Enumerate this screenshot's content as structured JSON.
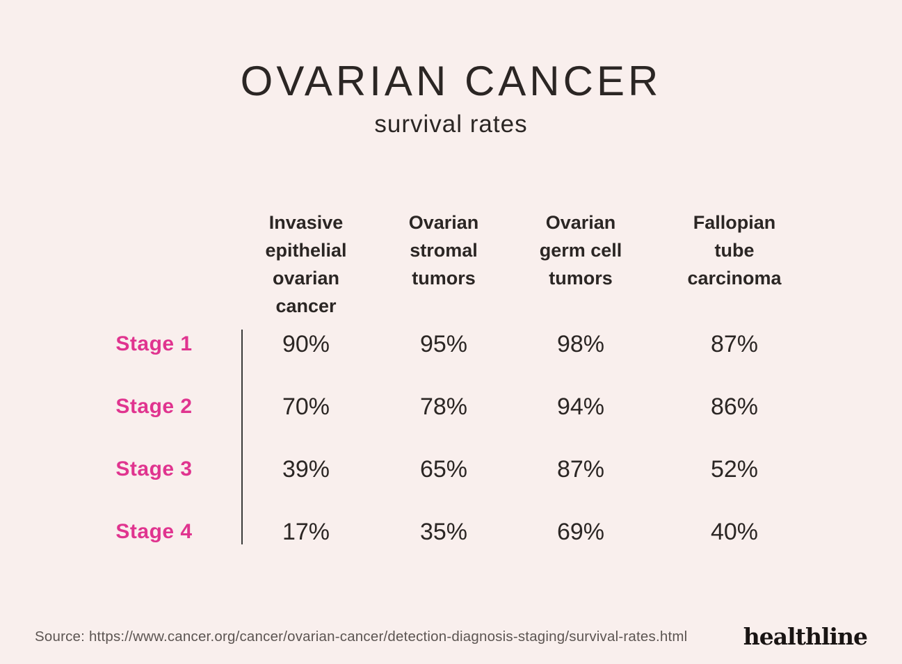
{
  "title": "OVARIAN CANCER",
  "subtitle": "survival rates",
  "table": {
    "column_headers_display": [
      "Invasive\nepithelial\novarian cancer",
      "Ovarian\nstromal\ntumors",
      "Ovarian\ngerm cell\ntumors",
      "Fallopian\ntube\ncarcinoma"
    ]
  },
  "chart_data": {
    "type": "table",
    "title": "Ovarian cancer survival rates",
    "columns": [
      "Invasive epithelial ovarian cancer",
      "Ovarian stromal tumors",
      "Ovarian germ cell tumors",
      "Fallopian tube carcinoma"
    ],
    "row_labels": [
      "Stage 1",
      "Stage 2",
      "Stage 3",
      "Stage 4"
    ],
    "rows": [
      {
        "label": "Stage 1",
        "values": [
          "90%",
          "95%",
          "98%",
          "87%"
        ]
      },
      {
        "label": "Stage 2",
        "values": [
          "70%",
          "78%",
          "94%",
          "86%"
        ]
      },
      {
        "label": "Stage 3",
        "values": [
          "39%",
          "65%",
          "87%",
          "52%"
        ]
      },
      {
        "label": "Stage 4",
        "values": [
          "17%",
          "35%",
          "69%",
          "40%"
        ]
      }
    ],
    "units": "percent survival rate"
  },
  "footer": {
    "source": "Source: https://www.cancer.org/cancer/ovarian-cancer/detection-diagnosis-staging/survival-rates.html",
    "brand": "healthline"
  },
  "colors": {
    "background": "#f9efed",
    "text": "#2b2624",
    "stage_label": "#e0348f",
    "divider": "#3a3a3a",
    "source_text": "#5c5552",
    "brand_text": "#191413"
  }
}
